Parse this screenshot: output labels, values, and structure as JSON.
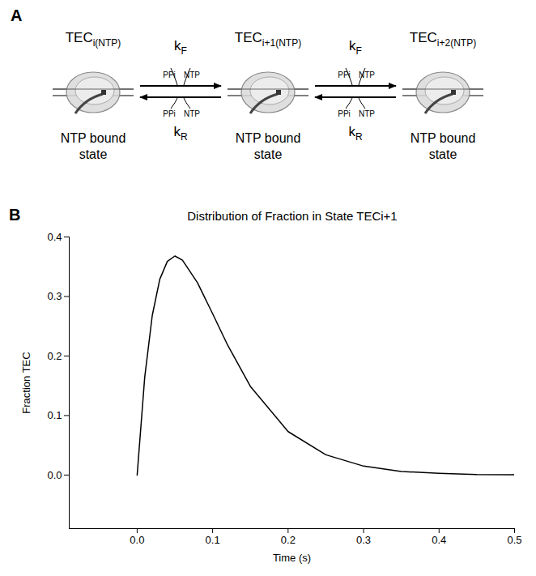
{
  "diagram": {
    "panel": "A",
    "states": [
      {
        "name": {
          "base": "TEC",
          "sub": "i(NTP)"
        },
        "caption": [
          "NTP bound",
          "state"
        ]
      },
      {
        "name": {
          "base": "TEC",
          "sub": "i+1(NTP)"
        },
        "caption": [
          "NTP bound",
          "state"
        ]
      },
      {
        "name": {
          "base": "TEC",
          "sub": "i+2(NTP)"
        },
        "caption": [
          "NTP bound",
          "state"
        ]
      }
    ],
    "steps": [
      {
        "forward": {
          "base": "k",
          "sub": "F"
        },
        "reverse": {
          "base": "k",
          "sub": "R"
        },
        "released": "PPi",
        "bound": "NTP"
      },
      {
        "forward": {
          "base": "k",
          "sub": "F"
        },
        "reverse": {
          "base": "k",
          "sub": "R"
        },
        "released": "PPi",
        "bound": "NTP"
      }
    ]
  },
  "chart_data": {
    "type": "line",
    "panel": "B",
    "title": "Distribution of Fraction in State TECi+1",
    "x_label": "Time (s)",
    "y_label": "Fraction TEC",
    "x": [
      0,
      0.01,
      0.02,
      0.03,
      0.04,
      0.05,
      0.06,
      0.08,
      0.1,
      0.12,
      0.15,
      0.2,
      0.25,
      0.3,
      0.35,
      0.4,
      0.45,
      0.5
    ],
    "series": [
      {
        "color": "#000000",
        "values": [
          0,
          0.164,
          0.268,
          0.329,
          0.359,
          0.368,
          0.361,
          0.323,
          0.271,
          0.218,
          0.149,
          0.073,
          0.034,
          0.015,
          0.006,
          0.003,
          0.001,
          0.0005
        ]
      }
    ],
    "xlim": [
      -0.09,
      0.5
    ],
    "ylim": [
      -0.09,
      0.4
    ],
    "xticks": [
      {
        "value": 0,
        "label": "0.0"
      },
      {
        "value": 0.1,
        "label": "0.1"
      },
      {
        "value": 0.2,
        "label": "0.2"
      },
      {
        "value": 0.3,
        "label": "0.3"
      },
      {
        "value": 0.4,
        "label": "0.4"
      },
      {
        "value": 0.5,
        "label": "0.5"
      }
    ],
    "yticks": [
      {
        "value": 0,
        "label": "0.0"
      },
      {
        "value": 0.1,
        "label": "0.1"
      },
      {
        "value": 0.2,
        "label": "0.2"
      },
      {
        "value": 0.3,
        "label": "0.3"
      },
      {
        "value": 0.4,
        "label": "0.4"
      }
    ],
    "grid": false
  }
}
